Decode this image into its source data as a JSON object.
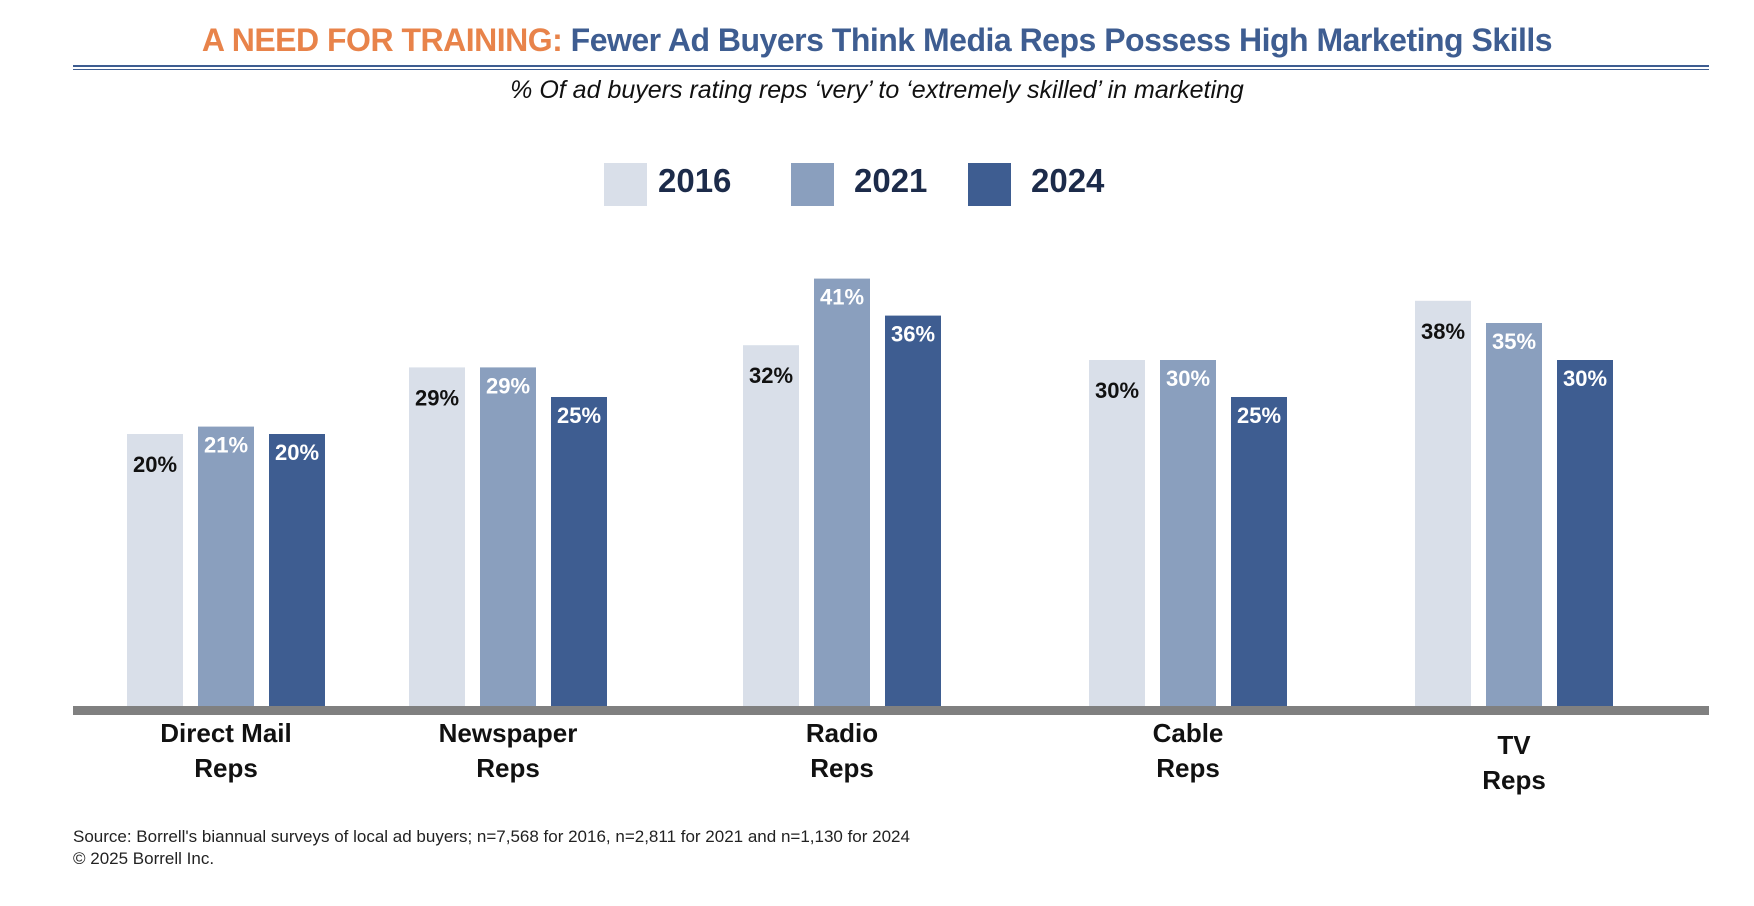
{
  "header": {
    "title_prefix": "A NEED FOR TRAINING:",
    "title_main": "Fewer Ad Buyers Think Media Reps Possess High Marketing Skills",
    "subtitle": "% Of ad buyers rating reps ‘very’ to ‘extremely skilled’ in marketing"
  },
  "colors": {
    "orange": "#e8834a",
    "blue": "#3e5d91",
    "axis": "#808080"
  },
  "chart_data": {
    "type": "bar",
    "title": "% Of ad buyers rating reps ‘very’ to ‘extremely skilled’ in marketing",
    "categories": [
      "Direct Mail Reps",
      "Newspaper Reps",
      "Radio Reps",
      "Cable Reps",
      "TV Reps"
    ],
    "category_lines": [
      [
        "Direct Mail",
        "Reps"
      ],
      [
        "Newspaper",
        "Reps"
      ],
      [
        "Radio",
        "Reps"
      ],
      [
        "Cable",
        "Reps"
      ],
      [
        "TV",
        "Reps"
      ]
    ],
    "series": [
      {
        "name": "2016",
        "color": "#d9dfe9",
        "label_color": "#111111",
        "values": [
          20,
          29,
          32,
          30,
          38
        ]
      },
      {
        "name": "2021",
        "color": "#8a9fbe",
        "label_color": "#ffffff",
        "values": [
          21,
          29,
          41,
          30,
          35
        ]
      },
      {
        "name": "2024",
        "color": "#3e5d91",
        "label_color": "#ffffff",
        "values": [
          20,
          25,
          36,
          25,
          30
        ]
      }
    ],
    "value_suffix": "%",
    "legend": "top-center",
    "grid": false,
    "y_axis_visible": false
  },
  "footer": {
    "source": "Source: Borrell's biannual surveys of local ad buyers; n=7,568 for 2016, n=2,811 for 2021 and n=1,130 for 2024",
    "copyright": "© 2025 Borrell Inc."
  }
}
